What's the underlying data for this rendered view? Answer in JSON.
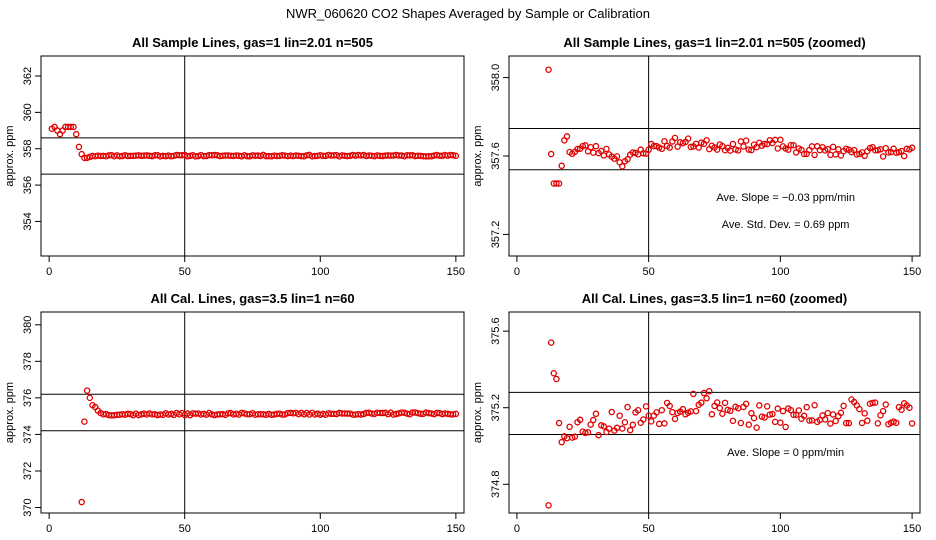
{
  "figure_title": "NWR_060620  CO2 Shapes Averaged by Sample or Calibration",
  "chart_data": [
    {
      "type": "scatter",
      "title": "All Sample Lines, gas=1 lin=2.01 n=505",
      "xlabel": "",
      "ylabel": "approx. ppm",
      "xlim": [
        -3,
        153
      ],
      "ylim": [
        352.1,
        363.1
      ],
      "xticks": [
        0,
        50,
        100,
        150
      ],
      "yticks": [
        354,
        356,
        358,
        360,
        362
      ],
      "point_color": "#e00000",
      "vlines": [
        50
      ],
      "hlines": [
        356.6,
        358.6
      ],
      "annotations": [],
      "x_start": 1,
      "x_step": 1,
      "y_anchors": [
        [
          1,
          359.1
        ],
        [
          2,
          359.2
        ],
        [
          3,
          359.0
        ],
        [
          4,
          358.8
        ],
        [
          5,
          359.0
        ],
        [
          6,
          359.2
        ],
        [
          7,
          359.2
        ],
        [
          8,
          359.2
        ],
        [
          9,
          359.2
        ],
        [
          10,
          358.8
        ],
        [
          11,
          358.1
        ],
        [
          12,
          357.7
        ],
        [
          13,
          357.5
        ],
        [
          14,
          357.5
        ],
        [
          15,
          357.55
        ],
        [
          16,
          357.6
        ],
        [
          18,
          357.62
        ],
        [
          150,
          357.62
        ]
      ],
      "jitter": 0.04,
      "seed": 11
    },
    {
      "type": "scatter",
      "title": "All Sample Lines, gas=1 lin=2.01 n=505 (zoomed)",
      "xlabel": "",
      "ylabel": "approx. ppm",
      "xlim": [
        -3,
        153
      ],
      "ylim": [
        357.09,
        358.11
      ],
      "xticks": [
        0,
        50,
        100,
        150
      ],
      "yticks": [
        357.2,
        357.6,
        358.0
      ],
      "point_color": "#e00000",
      "vlines": [
        50
      ],
      "hlines": [
        357.53,
        357.74
      ],
      "annotations": [
        "Ave. Slope =  −0.03  ppm/min",
        "Ave. Std. Dev. =  0.69  ppm"
      ],
      "x_start": 12,
      "x_step": 1,
      "y_anchors": [
        [
          12,
          358.04
        ],
        [
          13,
          357.61
        ],
        [
          14,
          357.46
        ],
        [
          15,
          357.46
        ],
        [
          16,
          357.46
        ],
        [
          17,
          357.55
        ],
        [
          18,
          357.68
        ],
        [
          19,
          357.7
        ],
        [
          20,
          357.62
        ],
        [
          25,
          357.64
        ],
        [
          35,
          357.62
        ],
        [
          40,
          357.57
        ],
        [
          50,
          357.64
        ],
        [
          60,
          357.67
        ],
        [
          80,
          357.65
        ],
        [
          100,
          357.66
        ],
        [
          105,
          357.63
        ],
        [
          150,
          357.62
        ]
      ],
      "jitter": 0.025,
      "seed": 23
    },
    {
      "type": "scatter",
      "title": "All Cal. Lines, gas=3.5 lin=1 n=60",
      "xlabel": "",
      "ylabel": "approx. ppm",
      "xlim": [
        -3,
        153
      ],
      "ylim": [
        369.7,
        380.7
      ],
      "xticks": [
        0,
        50,
        100,
        150
      ],
      "yticks": [
        370,
        372,
        374,
        376,
        378,
        380
      ],
      "point_color": "#e00000",
      "vlines": [
        50
      ],
      "hlines": [
        374.2,
        376.2
      ],
      "annotations": [],
      "x_start": 12,
      "x_step": 1,
      "y_anchors": [
        [
          12,
          370.3
        ],
        [
          13,
          374.7
        ],
        [
          14,
          376.4
        ],
        [
          15,
          376.0
        ],
        [
          16,
          375.6
        ],
        [
          17,
          375.5
        ],
        [
          18,
          375.3
        ],
        [
          20,
          375.1
        ],
        [
          150,
          375.15
        ]
      ],
      "jitter": 0.06,
      "seed": 37
    },
    {
      "type": "scatter",
      "title": "All Cal. Lines, gas=3.5 lin=1 n=60 (zoomed)",
      "xlabel": "",
      "ylabel": "approx. ppm",
      "xlim": [
        -3,
        153
      ],
      "ylim": [
        374.65,
        375.7
      ],
      "xticks": [
        0,
        50,
        100,
        150
      ],
      "yticks": [
        374.8,
        375.2,
        375.6
      ],
      "point_color": "#e00000",
      "vlines": [
        50
      ],
      "hlines": [
        375.06,
        375.28
      ],
      "annotations": [
        "Ave. Slope =  0  ppm/min"
      ],
      "x_start": 12,
      "x_step": 1,
      "y_anchors": [
        [
          12,
          374.69
        ],
        [
          13,
          375.54
        ],
        [
          14,
          375.38
        ],
        [
          15,
          375.35
        ],
        [
          16,
          375.12
        ],
        [
          17,
          375.02
        ],
        [
          18,
          375.05
        ],
        [
          20,
          375.1
        ],
        [
          30,
          375.12
        ],
        [
          50,
          375.16
        ],
        [
          70,
          375.25
        ],
        [
          90,
          375.14
        ],
        [
          110,
          375.17
        ],
        [
          130,
          375.18
        ],
        [
          150,
          375.16
        ]
      ],
      "jitter": 0.07,
      "seed": 53
    }
  ]
}
